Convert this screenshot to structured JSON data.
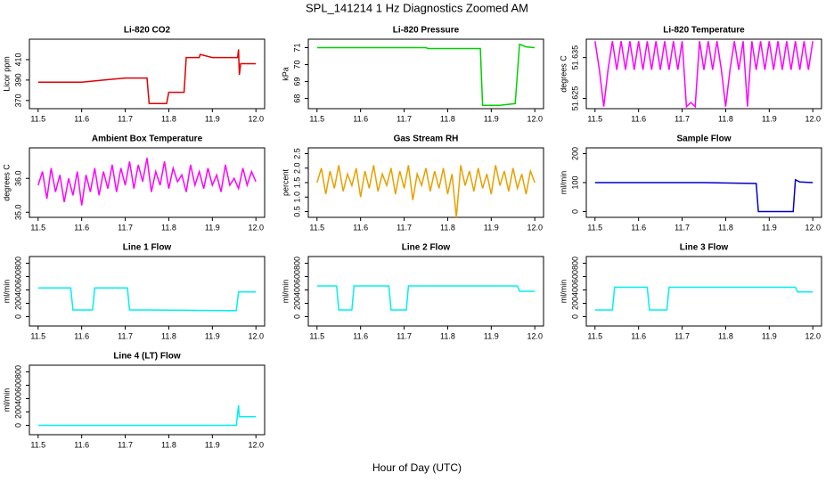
{
  "title": "SPL_141214 1 Hz Diagnostics Zoomed AM",
  "x_label": "Hour of Day (UTC)",
  "xlim": [
    11.48,
    12.02
  ],
  "xticks": [
    11.5,
    11.6,
    11.7,
    11.8,
    11.9,
    {
      "value": 12,
      "label": "12.0"
    }
  ],
  "chart_data": [
    {
      "type": "line",
      "title": "Li-820 CO2",
      "y_label": "Licor ppm",
      "color": "#e00000",
      "x": [
        11.5,
        11.6,
        11.65,
        11.7,
        11.75,
        11.755,
        11.795,
        11.8,
        11.835,
        11.84,
        11.87,
        11.872,
        11.9,
        11.958,
        11.96,
        11.962,
        11.965,
        12.0
      ],
      "values": [
        388,
        388,
        390,
        392,
        392,
        367,
        367,
        378,
        378,
        412,
        412,
        415,
        412,
        412,
        420,
        395,
        406,
        406
      ],
      "ylim": [
        362,
        430
      ],
      "yticks": [
        370,
        390,
        410
      ]
    },
    {
      "type": "line",
      "title": "Li-820 Pressure",
      "y_label": "kPa",
      "color": "#00d000",
      "x": [
        11.5,
        11.75,
        11.755,
        11.875,
        11.88,
        11.92,
        11.955,
        11.965,
        11.98,
        12.0
      ],
      "values": [
        71.0,
        71.0,
        70.95,
        70.95,
        67.6,
        67.6,
        67.7,
        71.2,
        71.05,
        71.0
      ],
      "ylim": [
        67.4,
        71.5
      ],
      "yticks": [
        68,
        69,
        70,
        71
      ]
    },
    {
      "type": "line",
      "title": "Li-820 Temperature",
      "y_label": "degrees C",
      "color": "#ff00ff",
      "x": [
        11.5,
        11.51,
        11.52,
        11.53,
        11.54,
        11.55,
        11.56,
        11.57,
        11.58,
        11.59,
        11.6,
        11.61,
        11.62,
        11.63,
        11.64,
        11.65,
        11.66,
        11.67,
        11.68,
        11.69,
        11.7,
        11.71,
        11.72,
        11.73,
        11.74,
        11.75,
        11.76,
        11.77,
        11.78,
        11.79,
        11.8,
        11.81,
        11.82,
        11.83,
        11.84,
        11.85,
        11.86,
        11.87,
        11.88,
        11.89,
        11.9,
        11.91,
        11.92,
        11.93,
        11.94,
        11.95,
        11.96,
        11.97,
        11.98,
        11.99,
        12.0
      ],
      "values": [
        51.639,
        51.632,
        51.623,
        51.632,
        51.639,
        51.632,
        51.639,
        51.632,
        51.639,
        51.632,
        51.639,
        51.632,
        51.639,
        51.632,
        51.639,
        51.632,
        51.639,
        51.632,
        51.639,
        51.632,
        51.639,
        51.623,
        51.624,
        51.623,
        51.639,
        51.632,
        51.639,
        51.632,
        51.639,
        51.632,
        51.623,
        51.632,
        51.639,
        51.632,
        51.639,
        51.623,
        51.639,
        51.632,
        51.639,
        51.632,
        51.639,
        51.632,
        51.639,
        51.632,
        51.639,
        51.632,
        51.639,
        51.632,
        51.639,
        51.632,
        51.639
      ],
      "ylim": [
        51.6225,
        51.6395
      ],
      "yticks": [
        51.625,
        51.635
      ]
    },
    {
      "type": "line",
      "title": "Ambient Box Temperature",
      "y_label": "degrees C",
      "color": "#ff00ff",
      "x": [
        11.5,
        11.51,
        11.52,
        11.53,
        11.54,
        11.55,
        11.56,
        11.57,
        11.58,
        11.59,
        11.6,
        11.61,
        11.62,
        11.63,
        11.64,
        11.65,
        11.66,
        11.67,
        11.68,
        11.69,
        11.7,
        11.71,
        11.72,
        11.73,
        11.74,
        11.75,
        11.76,
        11.77,
        11.78,
        11.79,
        11.8,
        11.81,
        11.82,
        11.83,
        11.84,
        11.85,
        11.86,
        11.87,
        11.88,
        11.89,
        11.9,
        11.91,
        11.92,
        11.93,
        11.94,
        11.95,
        11.96,
        11.97,
        11.98,
        11.99,
        12.0
      ],
      "values": [
        35.8,
        36.2,
        35.4,
        36.3,
        35.6,
        36.1,
        35.3,
        36.0,
        35.5,
        36.2,
        35.2,
        36.1,
        35.6,
        36.3,
        35.5,
        36.2,
        35.7,
        36.4,
        35.6,
        36.3,
        35.8,
        36.5,
        35.7,
        36.4,
        35.9,
        36.6,
        35.6,
        36.2,
        35.8,
        36.5,
        35.7,
        36.3,
        35.9,
        36.1,
        35.6,
        36.4,
        35.8,
        36.2,
        35.7,
        36.3,
        35.8,
        36.1,
        35.6,
        36.4,
        35.8,
        36.0,
        35.7,
        36.3,
        35.8,
        36.2,
        35.9
      ],
      "ylim": [
        34.85,
        36.9
      ],
      "yticks": [
        {
          "value": 35,
          "label": "35.0"
        },
        {
          "value": 36,
          "label": "36.0"
        }
      ]
    },
    {
      "type": "line",
      "title": "Gas Stream RH",
      "y_label": "percent",
      "color": "#e8a000",
      "x": [
        11.5,
        11.51,
        11.52,
        11.53,
        11.54,
        11.55,
        11.56,
        11.57,
        11.58,
        11.59,
        11.6,
        11.61,
        11.62,
        11.63,
        11.64,
        11.65,
        11.66,
        11.67,
        11.68,
        11.69,
        11.7,
        11.71,
        11.72,
        11.73,
        11.74,
        11.75,
        11.76,
        11.77,
        11.78,
        11.79,
        11.8,
        11.81,
        11.82,
        11.83,
        11.84,
        11.85,
        11.86,
        11.87,
        11.88,
        11.89,
        11.9,
        11.91,
        11.92,
        11.93,
        11.94,
        11.95,
        11.96,
        11.97,
        11.98,
        11.99,
        12.0
      ],
      "values": [
        1.5,
        2.0,
        1.1,
        1.9,
        1.3,
        2.1,
        1.2,
        1.8,
        1.4,
        2.0,
        1.0,
        1.9,
        1.3,
        2.1,
        1.2,
        1.8,
        1.4,
        2.0,
        1.1,
        1.9,
        1.3,
        2.1,
        0.9,
        1.8,
        1.4,
        2.0,
        1.2,
        1.9,
        1.3,
        2.0,
        1.1,
        1.8,
        0.3,
        2.1,
        1.4,
        1.9,
        1.2,
        2.0,
        1.3,
        1.8,
        1.1,
        2.1,
        1.4,
        1.9,
        1.2,
        2.0,
        1.3,
        1.8,
        1.1,
        1.9,
        1.5
      ],
      "ylim": [
        0.3,
        2.7
      ],
      "yticks": [
        0.5,
        {
          "value": 1,
          "label": "1.0"
        },
        1.5,
        {
          "value": 2,
          "label": "2.0"
        },
        2.5
      ]
    },
    {
      "type": "line",
      "title": "Sample Flow",
      "y_label": "ml/min",
      "color": "#0000c8",
      "x": [
        11.5,
        11.75,
        11.87,
        11.875,
        11.955,
        11.96,
        11.97,
        12.0
      ],
      "values": [
        100,
        100,
        97,
        0,
        0,
        110,
        102,
        100
      ],
      "ylim": [
        -20,
        220
      ],
      "yticks": [
        0,
        100,
        200
      ]
    },
    {
      "type": "line",
      "title": "Line 1 Flow",
      "y_label": "ml/min",
      "color": "#00f0f0",
      "x": [
        11.5,
        11.575,
        11.58,
        11.625,
        11.63,
        11.705,
        11.71,
        11.745,
        11.955,
        11.96,
        12.0
      ],
      "values": [
        430,
        430,
        100,
        100,
        430,
        430,
        100,
        100,
        90,
        370,
        370
      ],
      "ylim": [
        -140,
        900
      ],
      "yticks": [
        0,
        200,
        400,
        600,
        800
      ]
    },
    {
      "type": "line",
      "title": "Line 2 Flow",
      "y_label": "ml/min",
      "color": "#00f0f0",
      "x": [
        11.5,
        11.545,
        11.55,
        11.58,
        11.585,
        11.665,
        11.67,
        11.705,
        11.71,
        11.96,
        11.965,
        12.0
      ],
      "values": [
        460,
        460,
        100,
        100,
        460,
        460,
        100,
        100,
        460,
        460,
        380,
        380
      ],
      "ylim": [
        -140,
        900
      ],
      "yticks": [
        0,
        200,
        400,
        600,
        800
      ]
    },
    {
      "type": "line",
      "title": "Line 3 Flow",
      "y_label": "ml/min",
      "color": "#00f0f0",
      "x": [
        11.5,
        11.54,
        11.545,
        11.62,
        11.625,
        11.665,
        11.67,
        11.96,
        11.965,
        12.0
      ],
      "values": [
        100,
        100,
        440,
        440,
        100,
        100,
        440,
        440,
        370,
        370
      ],
      "ylim": [
        -140,
        900
      ],
      "yticks": [
        0,
        200,
        400,
        600,
        800
      ]
    },
    {
      "type": "line",
      "title": "Line 4 (LT) Flow",
      "y_label": "ml/min",
      "color": "#00f0f0",
      "x": [
        11.5,
        11.955,
        11.96,
        11.962,
        12.0
      ],
      "values": [
        0,
        0,
        300,
        130,
        130
      ],
      "ylim": [
        -140,
        900
      ],
      "yticks": [
        0,
        200,
        400,
        600,
        800
      ]
    }
  ]
}
